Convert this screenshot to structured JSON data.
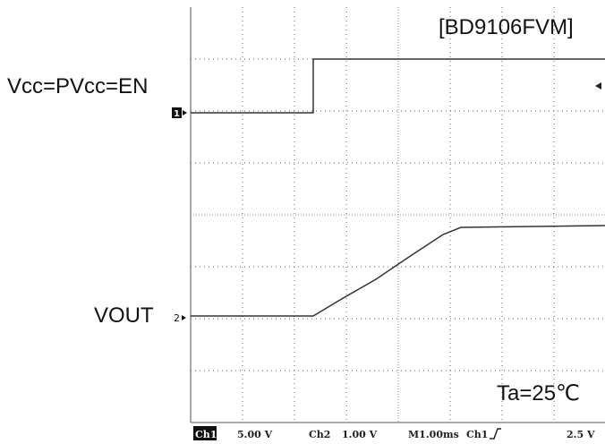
{
  "header": {
    "title": "[BD9106FVM]"
  },
  "channels": [
    {
      "label": "Vcc=PVcc=EN",
      "marker": "1"
    },
    {
      "label": "VOUT",
      "marker": "2"
    }
  ],
  "annotation": "Ta=25℃",
  "status_bar": {
    "ch1": "Ch1",
    "ch1_scale": "5.00 V",
    "ch2": "Ch2",
    "ch2_scale": "1.00 V",
    "timebase": "M1.00ms",
    "trigger_source": "Ch1",
    "trigger_level": "2.5 V"
  }
}
